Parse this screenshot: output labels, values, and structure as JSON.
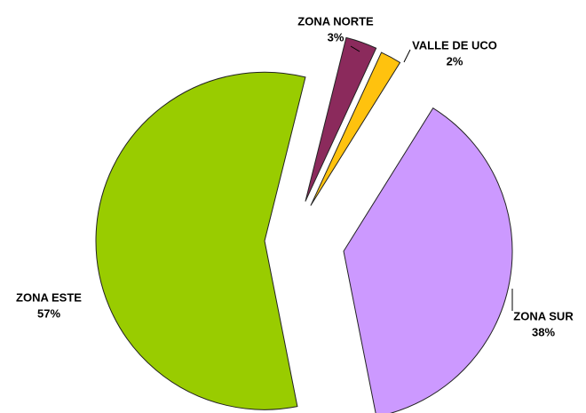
{
  "chart_data": {
    "type": "pie",
    "categories": [
      "ZONA NORTE",
      "VALLE DE UCO",
      "ZONA SUR",
      "ZONA ESTE"
    ],
    "values": [
      3,
      2,
      38,
      57
    ],
    "value_labels": [
      "3%",
      "2%",
      "38%",
      "57%"
    ],
    "colors": [
      "#8b2a5c",
      "#ffc20e",
      "#cc99ff",
      "#99cc00"
    ]
  }
}
